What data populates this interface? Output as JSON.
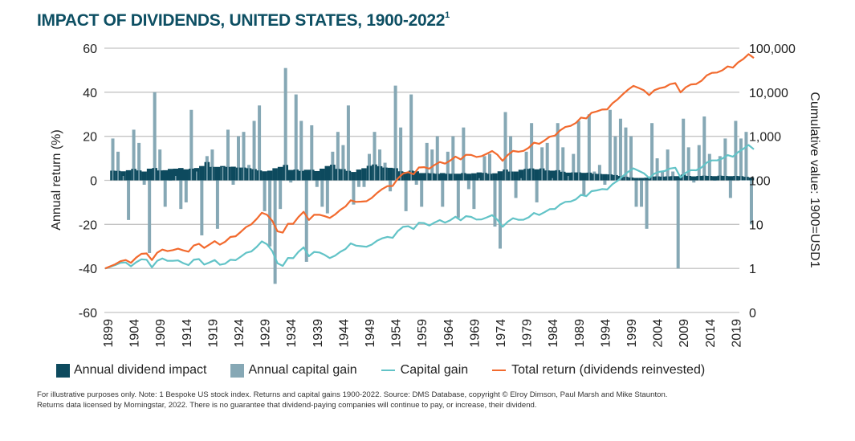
{
  "title": "IMPACT OF DIVIDENDS, UNITED STATES, 1900-2022",
  "title_superscript": "1",
  "legend": [
    {
      "label": "Annual dividend impact",
      "kind": "box",
      "color": "#0d4a5e"
    },
    {
      "label": "Annual capital gain",
      "kind": "box",
      "color": "#86a8b5"
    },
    {
      "label": "Capital gain",
      "kind": "line",
      "color": "#62c3c7"
    },
    {
      "label": "Total return (dividends reinvested)",
      "kind": "line",
      "color": "#f26a2e"
    }
  ],
  "footnote_line1": "For illustrative purposes only. Note: 1 Bespoke US stock index. Returns and capital gains 1900-2022. Source: DMS Database, copyright © Elroy Dimson, Paul Marsh and Mike Staunton.",
  "footnote_line2": "Returns data licensed by Morningstar, 2022. There is no guarantee that dividend-paying companies will continue to pay, or increase, their dividend.",
  "chart_data": {
    "type": "bar+line",
    "title": "IMPACT OF DIVIDENDS, UNITED STATES, 1900-2022",
    "ylabel": "Annual return (%)",
    "y2label": "Cumulative value: 1900=USD1",
    "ylim": [
      -60,
      60
    ],
    "yticks": [
      60,
      40,
      20,
      0,
      -20,
      -40,
      -60
    ],
    "y2scale": "log",
    "y2ticks": [
      "100,000",
      "10,000",
      "1,000",
      "100",
      "10",
      "1",
      "0"
    ],
    "y2tick_values": [
      100000,
      10000,
      1000,
      100,
      10,
      1,
      0.1
    ],
    "xticks": [
      "1899",
      "1904",
      "1909",
      "1914",
      "1919",
      "1924",
      "1929",
      "1934",
      "1939",
      "1944",
      "1949",
      "1954",
      "1959",
      "1964",
      "1969",
      "1974",
      "1979",
      "1984",
      "1989",
      "1994",
      "1999",
      "2004",
      "2009",
      "2014",
      "2019"
    ],
    "grid": true,
    "legend_position": "bottom",
    "years_start": 1900,
    "years_end": 2022,
    "series": [
      {
        "name": "Annual capital gain",
        "type": "bar",
        "color": "#86a8b5",
        "values": [
          19,
          13,
          2,
          -18,
          23,
          17,
          -2,
          -33,
          40,
          14,
          -12,
          0,
          2,
          -13,
          -10,
          32,
          4,
          -25,
          11,
          14,
          -22,
          6,
          23,
          -2,
          20,
          22,
          7,
          27,
          34,
          -14,
          -30,
          -47,
          -13,
          51,
          -1,
          39,
          27,
          -37,
          25,
          -3,
          -12,
          -15,
          13,
          22,
          16,
          34,
          -11,
          -3,
          -3,
          12,
          22,
          14,
          8,
          -5,
          43,
          24,
          -14,
          39,
          -2,
          -12,
          17,
          14,
          20,
          -12,
          13,
          20,
          -17,
          24,
          -4,
          -13,
          1,
          11,
          12,
          -21,
          -31,
          31,
          20,
          -8,
          1,
          13,
          26,
          -10,
          15,
          17,
          1,
          26,
          15,
          2,
          12,
          27,
          -7,
          30,
          4,
          7,
          -2,
          32,
          20,
          28,
          24,
          20,
          -12,
          -12,
          -22,
          26,
          10,
          4,
          14,
          4,
          -40,
          28,
          15,
          -1,
          16,
          29,
          12,
          0,
          11,
          19,
          -8,
          27,
          19,
          22,
          -20
        ]
      },
      {
        "name": "Annual dividend impact",
        "type": "area",
        "color": "#0d4a5e",
        "values": [
          4.4,
          4.3,
          4.1,
          4.6,
          5.2,
          4.5,
          4.0,
          5.3,
          5.6,
          4.5,
          4.6,
          5.2,
          5.3,
          5.6,
          5.0,
          5.3,
          5.6,
          6.5,
          8.3,
          6.1,
          6.1,
          6.5,
          6.1,
          6.2,
          5.8,
          5.8,
          5.5,
          5.1,
          4.5,
          4.1,
          4.4,
          5.5,
          6.1,
          7.0,
          4.7,
          4.9,
          4.3,
          4.8,
          4.8,
          4.2,
          5.3,
          6.5,
          7.1,
          5.2,
          5.1,
          4.3,
          3.8,
          4.9,
          5.5,
          6.6,
          7.2,
          6.4,
          5.8,
          5.7,
          5.5,
          4.1,
          3.8,
          4.4,
          4.1,
          3.3,
          3.3,
          3.2,
          3.0,
          3.3,
          3.0,
          3.0,
          3.0,
          3.3,
          3.0,
          3.2,
          3.6,
          3.4,
          3.0,
          3.2,
          4.1,
          4.9,
          4.0,
          4.0,
          4.8,
          5.2,
          5.4,
          5.0,
          5.4,
          4.5,
          4.4,
          4.6,
          3.9,
          3.5,
          3.6,
          3.6,
          3.4,
          3.5,
          3.0,
          2.9,
          2.8,
          2.7,
          2.4,
          2.0,
          1.6,
          1.3,
          1.1,
          1.1,
          1.2,
          1.7,
          1.8,
          1.7,
          1.8,
          1.9,
          1.9,
          2.6,
          2.0,
          1.8,
          2.0,
          2.1,
          2.0,
          1.9,
          2.1,
          2.0,
          1.9,
          2.0,
          1.9,
          1.6,
          1.3
        ]
      },
      {
        "name": "Capital gain",
        "type": "line",
        "color": "#62c3c7",
        "scale": "y2",
        "values": [
          1.0,
          1.19,
          1.34,
          1.37,
          1.12,
          1.38,
          1.61,
          1.58,
          1.06,
          1.48,
          1.69,
          1.49,
          1.49,
          1.52,
          1.32,
          1.19,
          1.57,
          1.63,
          1.22,
          1.36,
          1.55,
          1.21,
          1.28,
          1.57,
          1.54,
          1.85,
          2.26,
          2.42,
          3.07,
          4.11,
          3.54,
          2.48,
          1.31,
          1.14,
          1.73,
          1.71,
          2.37,
          3.01,
          1.9,
          2.37,
          2.3,
          2.03,
          1.72,
          1.95,
          2.38,
          2.76,
          3.7,
          3.29,
          3.19,
          3.1,
          3.47,
          4.23,
          4.82,
          5.21,
          4.95,
          7.08,
          8.78,
          9.11,
          7.84,
          10.9,
          10.7,
          9.41,
          11.0,
          12.5,
          11.0,
          12.4,
          14.9,
          12.4,
          15.4,
          14.8,
          12.9,
          13.0,
          14.4,
          16.2,
          12.8,
          8.8,
          11.5,
          13.8,
          12.7,
          12.8,
          14.5,
          18.2,
          16.4,
          18.9,
          22.1,
          22.4,
          28.2,
          32.4,
          33.0,
          37.0,
          47.0,
          43.7,
          56.8,
          59.1,
          63.2,
          62.0,
          81.8,
          98.2,
          125.7,
          155.9,
          187.0,
          164.6,
          144.8,
          112.9,
          142.3,
          156.5,
          162.8,
          185.6,
          193.0,
          115.8,
          148.2,
          170.4,
          168.7,
          195.7,
          252.5,
          282.8,
          282.8,
          313.9,
          373.5,
          343.7,
          436.4,
          519.3,
          633.6,
          506.9
        ]
      },
      {
        "name": "Total return (dividends reinvested)",
        "type": "line",
        "color": "#f26a2e",
        "scale": "y2",
        "values": [
          1.0,
          1.24,
          1.46,
          1.55,
          1.34,
          1.76,
          2.14,
          2.19,
          1.55,
          2.26,
          2.68,
          2.47,
          2.6,
          2.81,
          2.57,
          2.4,
          3.3,
          3.62,
          2.93,
          3.49,
          4.17,
          3.46,
          4.02,
          5.19,
          5.37,
          6.78,
          8.69,
          10.0,
          13.2,
          18.3,
          16.5,
          12.1,
          6.99,
          6.51,
          10.3,
          10.3,
          14.7,
          19.3,
          12.6,
          16.5,
          16.6,
          15.4,
          14.0,
          16.8,
          21.3,
          25.5,
          35.1,
          32.4,
          32.9,
          33.6,
          39.9,
          51.2,
          63.3,
          73.8,
          74.4,
          110.6,
          142.3,
          153.4,
          137.3,
          196.1,
          199.5,
          184.2,
          222.7,
          260.1,
          239.5,
          280.8,
          345.1,
          299.4,
          380.7,
          376.3,
          340.1,
          353.4,
          401.2,
          462.8,
          382.9,
          277.3,
          375.2,
          465.8,
          445.3,
          467.6,
          550.6,
          717.7,
          672.5,
          802.4,
          976.7,
          1036.5,
          1360.9,
          1625.5,
          1722.7,
          2004.7,
          2654.4,
          2549.4,
          3424.2,
          3664.5,
          4038.9,
          4091.2,
          5618.7,
          6920.8,
          9039.6,
          11486.0,
          13952.0,
          12535.0,
          11053.0,
          8608.0,
          11104.0,
          12375.0,
          13050.0,
          15231.0,
          16092.0,
          9930.0,
          12920.0,
          15078.0,
          15372.0,
          18142.0,
          24101.0,
          27515.0,
          27998.0,
          31553.0,
          38536.0,
          36236.0,
          47614.0,
          57029.0,
          73211.0,
          59944.0
        ]
      }
    ]
  }
}
